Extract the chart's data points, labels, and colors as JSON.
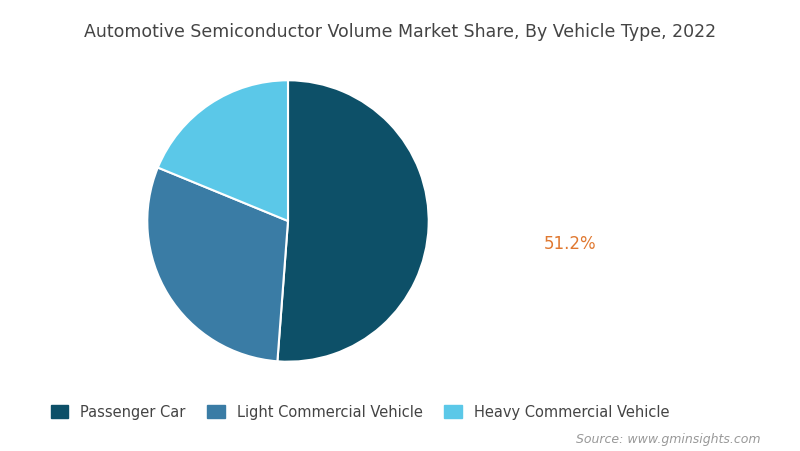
{
  "title": "Automotive Semiconductor Volume Market Share, By Vehicle Type, 2022",
  "slices": [
    51.2,
    30.0,
    18.8
  ],
  "labels": [
    "Passenger Car",
    "Light Commercial Vehicle",
    "Heavy Commercial Vehicle"
  ],
  "colors": [
    "#0d5068",
    "#3a7ca5",
    "#5bc8e8"
  ],
  "annotation_text": "51.2%",
  "annotation_color": "#e07830",
  "source_text": "Source: www.gminsights.com",
  "background_color": "#ffffff",
  "title_color": "#444444",
  "legend_text_color": "#444444",
  "title_fontsize": 12.5,
  "legend_fontsize": 10.5,
  "source_fontsize": 9,
  "startangle": 90,
  "wedge_linewidth": 1.5,
  "wedge_edgecolor": "#ffffff"
}
